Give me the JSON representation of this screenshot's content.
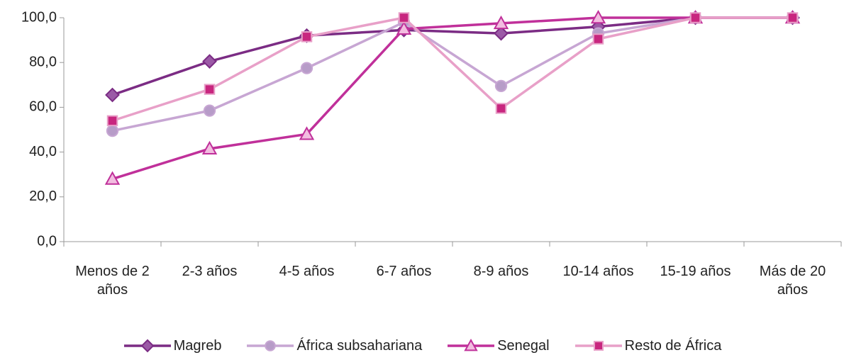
{
  "chart_data": {
    "type": "line",
    "categories": [
      "Menos de 2 años",
      "2-3 años",
      "4-5 años",
      "6-7 años",
      "8-9 años",
      "10-14 años",
      "15-19 años",
      "Más de 20 años"
    ],
    "series": [
      {
        "name": "Magreb",
        "color": "#7b2c84",
        "marker": "diamond",
        "marker_color": "#9b5aa6",
        "values": [
          65.5,
          80.5,
          92,
          94.5,
          93,
          96,
          100,
          100
        ]
      },
      {
        "name": "África subsahariana",
        "color": "#c7a6d3",
        "marker": "circle",
        "marker_color": "#b79cc8",
        "values": [
          49.5,
          58.5,
          77.5,
          98,
          69.5,
          93,
          100,
          100
        ]
      },
      {
        "name": "Senegal",
        "color": "#c0309a",
        "marker": "triangle",
        "marker_color": "#f2bde0",
        "values": [
          28,
          41.5,
          48,
          95,
          97.5,
          100,
          100,
          100
        ]
      },
      {
        "name": "Resto de África",
        "color": "#e8a0c8",
        "marker": "square",
        "marker_color": "#c8267f",
        "values": [
          54,
          68,
          91.5,
          100,
          59.5,
          90.5,
          100,
          100
        ]
      }
    ],
    "ylim": [
      0,
      100
    ],
    "yticks": [
      {
        "value": 0,
        "label": "0,0"
      },
      {
        "value": 20,
        "label": "20,0"
      },
      {
        "value": 40,
        "label": "40,0"
      },
      {
        "value": 60,
        "label": "60,0"
      },
      {
        "value": 80,
        "label": "80,0"
      },
      {
        "value": 100,
        "label": "100,0"
      }
    ],
    "grid": false
  }
}
